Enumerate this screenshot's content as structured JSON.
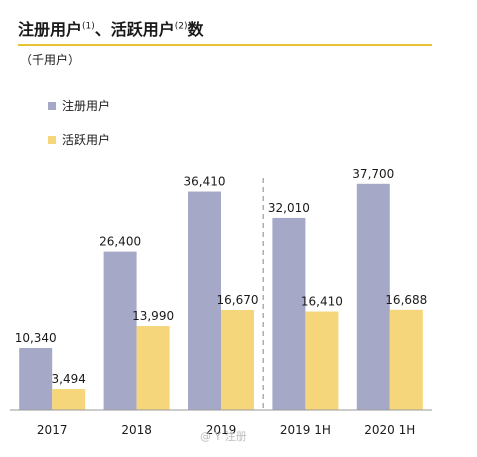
{
  "title": {
    "part1": "注册用户",
    "note1": "(1)",
    "sep": "、活跃用户",
    "note2": "(2)",
    "part2": "数"
  },
  "unit": "（千用户）",
  "watermark": "@ Y 注册 ",
  "chart_data": {
    "type": "bar",
    "categories": [
      "2017",
      "2018",
      "2019",
      "2019 1H",
      "2020 1H"
    ],
    "series": [
      {
        "name": "注册用户",
        "color": "#a6a8c8",
        "values": [
          10340,
          26400,
          36410,
          32010,
          37700
        ],
        "labels": [
          "10,340",
          "26,400",
          "36,410",
          "32,010",
          "37,700"
        ]
      },
      {
        "name": "活跃用户",
        "color": "#f5d67a",
        "values": [
          3494,
          13990,
          16670,
          16410,
          16688
        ],
        "labels": [
          "3,494",
          "13,990",
          "16,670",
          "16,410",
          "16,688"
        ]
      }
    ],
    "ylim": [
      0,
      40000
    ],
    "grid": false,
    "legend": "top-left",
    "divider_after_category": 2
  }
}
